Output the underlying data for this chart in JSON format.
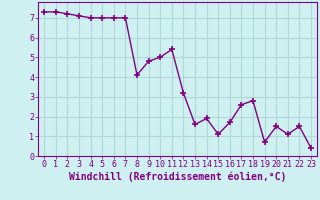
{
  "x": [
    0,
    1,
    2,
    3,
    4,
    5,
    6,
    7,
    8,
    9,
    10,
    11,
    12,
    13,
    14,
    15,
    16,
    17,
    18,
    19,
    20,
    21,
    22,
    23
  ],
  "y": [
    7.3,
    7.3,
    7.2,
    7.1,
    7.0,
    7.0,
    7.0,
    7.0,
    4.1,
    4.8,
    5.0,
    5.4,
    3.2,
    1.6,
    1.9,
    1.1,
    1.7,
    2.6,
    2.8,
    0.7,
    1.5,
    1.1,
    1.5,
    0.4
  ],
  "line_color": "#800080",
  "marker": "+",
  "marker_size": 4,
  "bg_color": "#cff0f0",
  "grid_color": "#b0d8d8",
  "xlabel": "Windchill (Refroidissement éolien,°C)",
  "xlabel_fontsize": 7,
  "xlabel_fontweight": "bold",
  "ytick_labels": [
    "0",
    "1",
    "2",
    "3",
    "4",
    "5",
    "6",
    "7"
  ],
  "xtick_labels": [
    "0",
    "1",
    "2",
    "3",
    "4",
    "5",
    "6",
    "7",
    "8",
    "9",
    "10",
    "11",
    "12",
    "13",
    "14",
    "15",
    "16",
    "17",
    "18",
    "19",
    "20",
    "21",
    "22",
    "23"
  ],
  "xlim": [
    -0.5,
    23.5
  ],
  "ylim": [
    0,
    7.8
  ],
  "yticks": [
    0,
    1,
    2,
    3,
    4,
    5,
    6,
    7
  ],
  "tick_fontsize": 6,
  "linewidth": 1.0
}
